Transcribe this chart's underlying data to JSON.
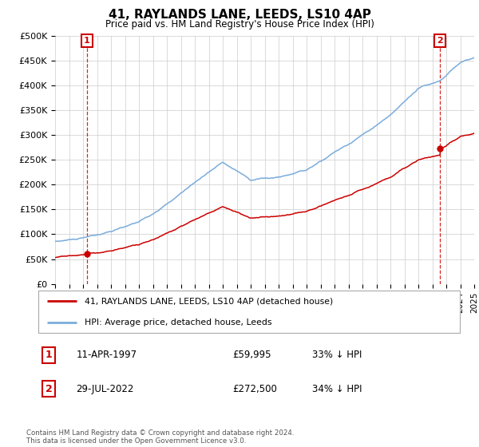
{
  "title": "41, RAYLANDS LANE, LEEDS, LS10 4AP",
  "subtitle": "Price paid vs. HM Land Registry's House Price Index (HPI)",
  "red_line_color": "#cc0000",
  "blue_line_color": "#7aacdc",
  "background_color": "#ffffff",
  "grid_color": "#cccccc",
  "purchase1_year": 1997.28,
  "purchase1_price": 59995,
  "purchase2_year": 2022.57,
  "purchase2_price": 272500,
  "ylabel_ticks": [
    "£0",
    "£50K",
    "£100K",
    "£150K",
    "£200K",
    "£250K",
    "£300K",
    "£350K",
    "£400K",
    "£450K",
    "£500K"
  ],
  "ytick_values": [
    0,
    50000,
    100000,
    150000,
    200000,
    250000,
    300000,
    350000,
    400000,
    450000,
    500000
  ],
  "legend_entry1": "41, RAYLANDS LANE, LEEDS, LS10 4AP (detached house)",
  "legend_entry2": "HPI: Average price, detached house, Leeds",
  "table_row1": [
    "1",
    "11-APR-1997",
    "£59,995",
    "33% ↓ HPI"
  ],
  "table_row2": [
    "2",
    "29-JUL-2022",
    "£272,500",
    "34% ↓ HPI"
  ],
  "footnote": "Contains HM Land Registry data © Crown copyright and database right 2024.\nThis data is licensed under the Open Government Licence v3.0.",
  "xmin": 1995,
  "xmax": 2025,
  "ymin": 0,
  "ymax": 500000
}
